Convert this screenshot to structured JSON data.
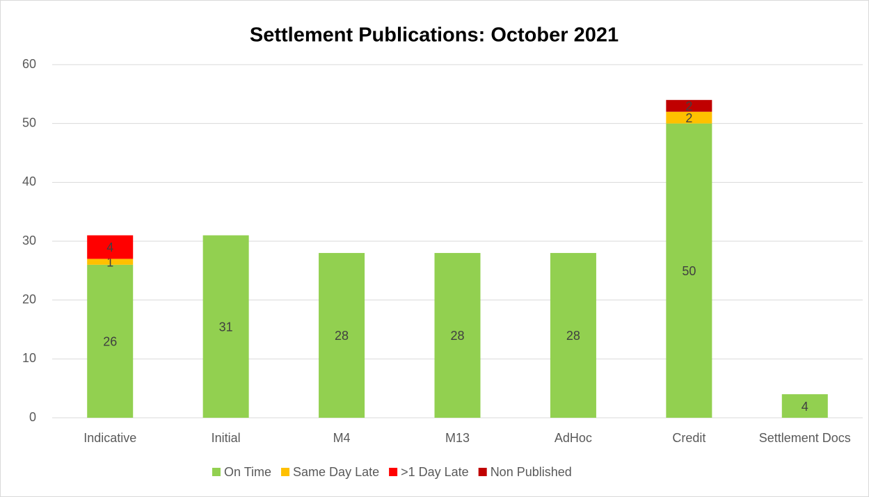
{
  "chart_data": {
    "type": "bar",
    "stacked": true,
    "title": "Settlement Publications: October 2021",
    "categories": [
      "Indicative",
      "Initial",
      "M4",
      "M13",
      "AdHoc",
      "Credit",
      "Settlement Docs"
    ],
    "series": [
      {
        "name": "On Time",
        "color": "#92d050",
        "values": [
          26,
          31,
          28,
          28,
          28,
          50,
          4
        ]
      },
      {
        "name": "Same Day Late",
        "color": "#ffc000",
        "values": [
          1,
          null,
          null,
          null,
          null,
          2,
          null
        ]
      },
      {
        "name": ">1 Day Late",
        "color": "#ff0000",
        "values": [
          4,
          null,
          null,
          null,
          null,
          null,
          null
        ]
      },
      {
        "name": "Non Published",
        "color": "#c00000",
        "values": [
          null,
          null,
          null,
          null,
          null,
          2,
          null
        ]
      }
    ],
    "ylim": [
      0,
      60
    ],
    "yticks": [
      0,
      10,
      20,
      30,
      40,
      50,
      60
    ],
    "grid": true,
    "legend": "bottom"
  }
}
